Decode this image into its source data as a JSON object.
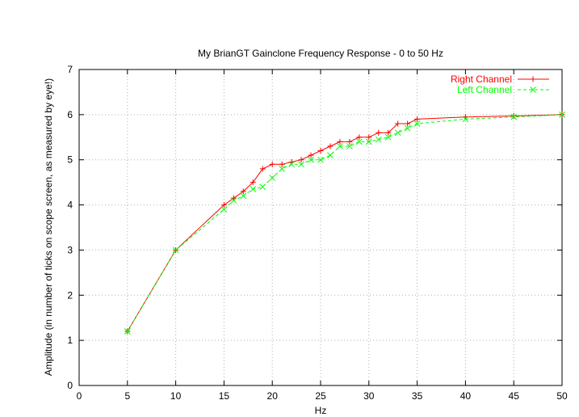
{
  "chart_data": {
    "type": "line",
    "title": "My BrianGT Gainclone Frequency Response - 0 to 50 Hz",
    "xlabel": "Hz",
    "ylabel": "Amplitude (in number of ticks on scope screen, as measured by eye!)",
    "xlim": [
      0,
      50
    ],
    "ylim": [
      0,
      7
    ],
    "xticks": [
      "0",
      "5",
      "10",
      "15",
      "20",
      "25",
      "30",
      "35",
      "40",
      "45",
      "50"
    ],
    "yticks": [
      "0",
      "1",
      "2",
      "3",
      "4",
      "5",
      "6",
      "7"
    ],
    "grid": true,
    "legend_position": "top-right",
    "series": [
      {
        "name": "Right Channel",
        "color": "#ff0000",
        "marker": "plus",
        "dash": "solid",
        "x": [
          5,
          10,
          15,
          16,
          17,
          18,
          19,
          20,
          21,
          22,
          23,
          24,
          25,
          26,
          27,
          28,
          29,
          30,
          31,
          32,
          33,
          34,
          35,
          40,
          45,
          50
        ],
        "y": [
          1.2,
          3.0,
          4.0,
          4.15,
          4.3,
          4.5,
          4.8,
          4.9,
          4.9,
          4.95,
          5.0,
          5.1,
          5.2,
          5.3,
          5.4,
          5.4,
          5.5,
          5.5,
          5.6,
          5.6,
          5.8,
          5.8,
          5.9,
          5.95,
          5.97,
          6.0
        ]
      },
      {
        "name": "Left Channel",
        "color": "#00ff00",
        "marker": "cross",
        "dash": "dashed",
        "x": [
          5,
          10,
          15,
          16,
          17,
          18,
          19,
          20,
          21,
          22,
          23,
          24,
          25,
          26,
          27,
          28,
          29,
          30,
          31,
          32,
          33,
          34,
          35,
          40,
          45,
          50
        ],
        "y": [
          1.2,
          3.0,
          3.9,
          4.1,
          4.2,
          4.35,
          4.4,
          4.6,
          4.8,
          4.9,
          4.9,
          5.0,
          5.0,
          5.1,
          5.3,
          5.3,
          5.4,
          5.4,
          5.45,
          5.5,
          5.6,
          5.7,
          5.8,
          5.9,
          5.95,
          6.0
        ]
      }
    ]
  }
}
